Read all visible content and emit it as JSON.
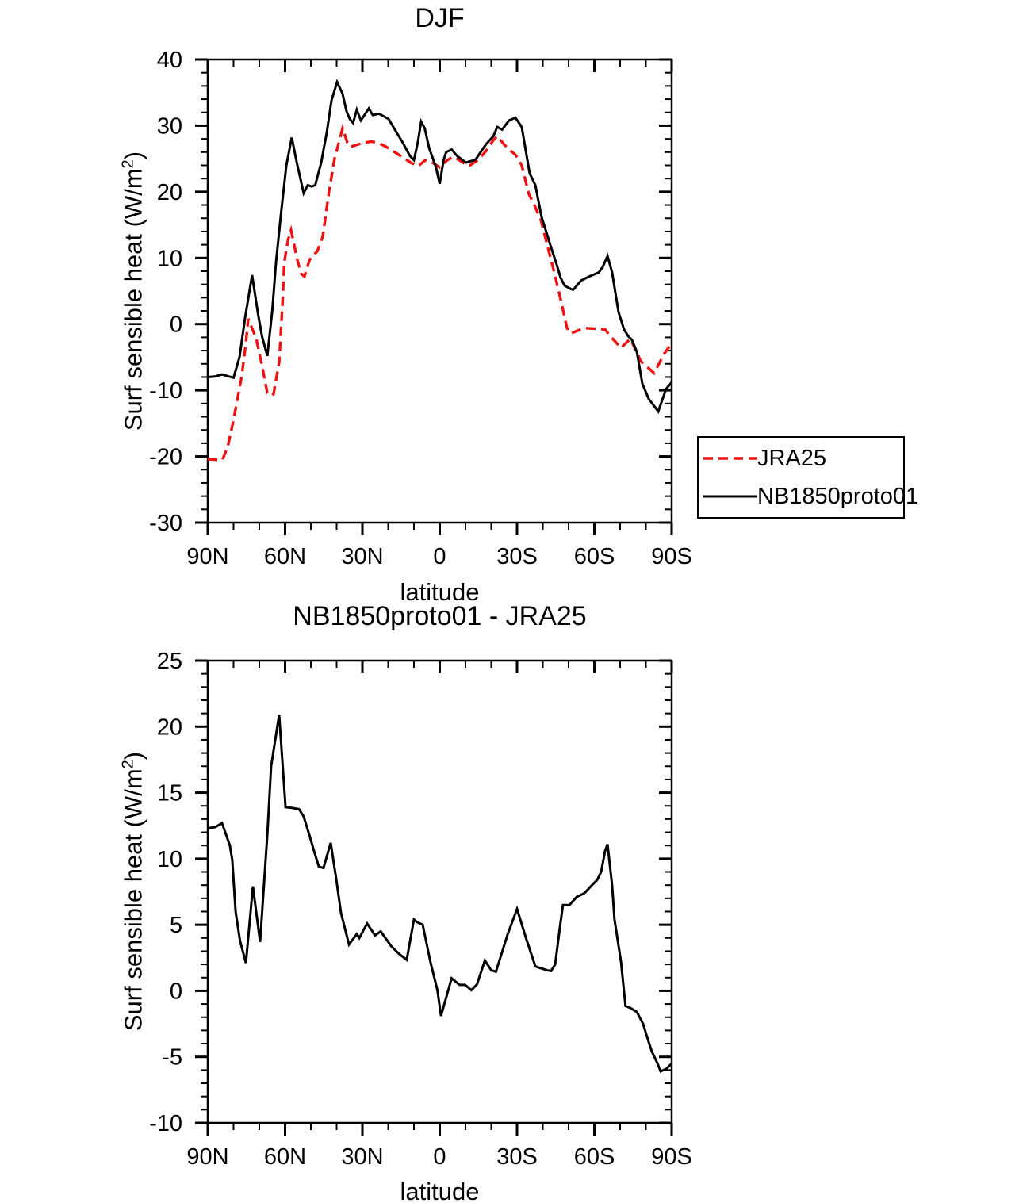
{
  "figure": {
    "background_color": "#ffffff",
    "axis_color": "#000000"
  },
  "chart_data": [
    {
      "type": "line",
      "title": "DJF",
      "xlabel": "latitude",
      "ylabel": "Surf sensible heat (W/m2)",
      "ylabel_prefix": "Surf sensible heat (W/m",
      "ylabel_sup": "2",
      "ylabel_suffix": ")",
      "xlim": [
        90,
        -90
      ],
      "ylim": [
        -30,
        40
      ],
      "x_tick_values": [
        90,
        60,
        30,
        0,
        -30,
        -60,
        -90
      ],
      "x_tick_labels": [
        "90N",
        "60N",
        "30N",
        "0",
        "30S",
        "60S",
        "90S"
      ],
      "x_minor_step": 10,
      "y_tick_values": [
        -30,
        -20,
        -10,
        0,
        10,
        20,
        30,
        40
      ],
      "y_tick_labels": [
        "-30",
        "-20",
        "-10",
        "0",
        "10",
        "20",
        "30",
        "40"
      ],
      "y_minor_step": 2,
      "grid": false,
      "legend": {
        "position": "outside-right",
        "entries": [
          {
            "label": "JRA25",
            "color": "#ee1111",
            "dash": true
          },
          {
            "label": "NB1850proto01",
            "color": "#000000",
            "dash": false
          }
        ]
      },
      "series": [
        {
          "name": "JRA25",
          "color": "#ee1111",
          "style": "dashed",
          "legend_dash": "12 7",
          "points": [
            [
              90,
              -20.4
            ],
            [
              87,
              -20.5
            ],
            [
              84.3,
              -20.5
            ],
            [
              82.3,
              -18.6
            ],
            [
              80.5,
              -15.4
            ],
            [
              78.9,
              -12.2
            ],
            [
              76.8,
              -7.8
            ],
            [
              75.2,
              -2.8
            ],
            [
              74.3,
              0.8
            ],
            [
              71.2,
              -2.2
            ],
            [
              69,
              -6.2
            ],
            [
              66.9,
              -10.4
            ],
            [
              65.4,
              -10.8
            ],
            [
              64.5,
              -10.6
            ],
            [
              62.3,
              -5.8
            ],
            [
              60.9,
              4.0
            ],
            [
              60.3,
              9.4
            ],
            [
              58.8,
              12.8
            ],
            [
              57.7,
              14.2
            ],
            [
              55.2,
              9.6
            ],
            [
              53.7,
              7.6
            ],
            [
              52.5,
              7.2
            ],
            [
              50.6,
              9.6
            ],
            [
              49.7,
              10.2
            ],
            [
              47.5,
              11.0
            ],
            [
              45.4,
              13.2
            ],
            [
              42.9,
              20.2
            ],
            [
              40.8,
              25.0
            ],
            [
              37.7,
              29.6
            ],
            [
              35.8,
              27.4
            ],
            [
              34.6,
              26.8
            ],
            [
              29.7,
              27.4
            ],
            [
              26.6,
              27.6
            ],
            [
              23.8,
              27.4
            ],
            [
              20.8,
              26.8
            ],
            [
              17.4,
              26.0
            ],
            [
              14.3,
              25.2
            ],
            [
              11.2,
              24.4
            ],
            [
              8.5,
              23.9
            ],
            [
              7.4,
              24.2
            ],
            [
              5.5,
              24.8
            ],
            [
              3.5,
              24.6
            ],
            [
              0,
              23.7
            ],
            [
              -3,
              24.8
            ],
            [
              -5.5,
              25.3
            ],
            [
              -9.8,
              24.2
            ],
            [
              -11.7,
              24.0
            ],
            [
              -14.9,
              24.8
            ],
            [
              -18,
              26.2
            ],
            [
              -20.8,
              27.8
            ],
            [
              -22.3,
              28.4
            ],
            [
              -24.9,
              27.2
            ],
            [
              -26.9,
              26.4
            ],
            [
              -29.4,
              25.6
            ],
            [
              -31.8,
              24.0
            ],
            [
              -34.6,
              19.6
            ],
            [
              -36.5,
              18.2
            ],
            [
              -39.2,
              15.8
            ],
            [
              -41.7,
              12.0
            ],
            [
              -44.2,
              8.2
            ],
            [
              -46.9,
              3.8
            ],
            [
              -49.4,
              -0.6
            ],
            [
              -50.9,
              -1.4
            ],
            [
              -53.4,
              -1.0
            ],
            [
              -56.2,
              -0.6
            ],
            [
              -60.2,
              -0.7
            ],
            [
              -64.2,
              -0.8
            ],
            [
              -65.7,
              -1.6
            ],
            [
              -68.5,
              -2.8
            ],
            [
              -70.3,
              -3.6
            ],
            [
              -74,
              -2.2
            ],
            [
              -78,
              -5.6
            ],
            [
              -83.2,
              -7.4
            ],
            [
              -86.9,
              -4.6
            ],
            [
              -90,
              -2.9
            ]
          ]
        },
        {
          "name": "NB1850proto01",
          "color": "#000000",
          "style": "solid",
          "points": [
            [
              90,
              -8.0
            ],
            [
              87,
              -7.9
            ],
            [
              84.5,
              -7.6
            ],
            [
              82,
              -7.9
            ],
            [
              80,
              -8.1
            ],
            [
              77.7,
              -5.0
            ],
            [
              75.5,
              1.0
            ],
            [
              72.8,
              7.4
            ],
            [
              70.5,
              1.5
            ],
            [
              69,
              -1.8
            ],
            [
              66.9,
              -4.8
            ],
            [
              65,
              2.0
            ],
            [
              63.5,
              9.4
            ],
            [
              61.5,
              17.0
            ],
            [
              59.5,
              24.0
            ],
            [
              57.4,
              28.2
            ],
            [
              55.5,
              24.5
            ],
            [
              52.8,
              19.8
            ],
            [
              51.2,
              21.0
            ],
            [
              49.7,
              20.8
            ],
            [
              48.3,
              21.0
            ],
            [
              46,
              24.4
            ],
            [
              43.8,
              29.0
            ],
            [
              42,
              33.8
            ],
            [
              39.8,
              36.6
            ],
            [
              37.7,
              34.8
            ],
            [
              36.2,
              32.2
            ],
            [
              34.9,
              31.0
            ],
            [
              33.6,
              30.4
            ],
            [
              32.2,
              32.4
            ],
            [
              30.6,
              30.8
            ],
            [
              27.5,
              32.6
            ],
            [
              26,
              31.6
            ],
            [
              23.5,
              31.8
            ],
            [
              19.8,
              31.0
            ],
            [
              17.4,
              29.4
            ],
            [
              14.6,
              27.6
            ],
            [
              11.5,
              25.4
            ],
            [
              10,
              24.8
            ],
            [
              8.5,
              27.5
            ],
            [
              7.2,
              30.6
            ],
            [
              5.8,
              29.6
            ],
            [
              4.1,
              26.6
            ],
            [
              1.5,
              23.8
            ],
            [
              0,
              21.2
            ],
            [
              -1.5,
              24.8
            ],
            [
              -2.5,
              26.0
            ],
            [
              -4.6,
              26.4
            ],
            [
              -6.8,
              25.4
            ],
            [
              -10.2,
              24.4
            ],
            [
              -11.7,
              24.6
            ],
            [
              -13.8,
              24.8
            ],
            [
              -15.5,
              25.8
            ],
            [
              -18,
              27.2
            ],
            [
              -20.8,
              28.4
            ],
            [
              -22.3,
              29.8
            ],
            [
              -24.2,
              29.4
            ],
            [
              -26.9,
              30.8
            ],
            [
              -29.4,
              31.2
            ],
            [
              -31.8,
              29.8
            ],
            [
              -34.9,
              22.8
            ],
            [
              -37.1,
              21.0
            ],
            [
              -39.5,
              16.2
            ],
            [
              -41.7,
              13.5
            ],
            [
              -43.2,
              11.6
            ],
            [
              -45.4,
              9.0
            ],
            [
              -46.9,
              7.0
            ],
            [
              -48.5,
              5.8
            ],
            [
              -50.9,
              5.3
            ],
            [
              -51.8,
              5.2
            ],
            [
              -54.9,
              6.6
            ],
            [
              -58,
              7.2
            ],
            [
              -61.7,
              7.8
            ],
            [
              -63.2,
              8.6
            ],
            [
              -65.1,
              10.3
            ],
            [
              -66.9,
              7.8
            ],
            [
              -69.4,
              1.8
            ],
            [
              -71.5,
              -0.8
            ],
            [
              -73.1,
              -1.8
            ],
            [
              -74.6,
              -2.4
            ],
            [
              -76.5,
              -4.2
            ],
            [
              -78.6,
              -9.0
            ],
            [
              -81.1,
              -11.3
            ],
            [
              -84.8,
              -13.2
            ],
            [
              -87.8,
              -9.8
            ],
            [
              -90,
              -8.8
            ]
          ]
        }
      ]
    },
    {
      "type": "line",
      "title": "NB1850proto01 - JRA25",
      "xlabel": "latitude",
      "ylabel": "Surf sensible heat (W/m2)",
      "ylabel_prefix": "Surf sensible heat (W/m",
      "ylabel_sup": "2",
      "ylabel_suffix": ")",
      "xlim": [
        90,
        -90
      ],
      "ylim": [
        -10,
        25
      ],
      "x_tick_values": [
        90,
        60,
        30,
        0,
        -30,
        -60,
        -90
      ],
      "x_tick_labels": [
        "90N",
        "60N",
        "30N",
        "0",
        "30S",
        "60S",
        "90S"
      ],
      "x_minor_step": 10,
      "y_tick_values": [
        -10,
        -5,
        0,
        5,
        10,
        15,
        20,
        25
      ],
      "y_tick_labels": [
        "-10",
        "-5",
        "0",
        "5",
        "10",
        "15",
        "20",
        "25"
      ],
      "y_minor_step": 1,
      "grid": false,
      "series": [
        {
          "name": "NB1850proto01 - JRA25",
          "color": "#000000",
          "style": "solid",
          "points": [
            [
              90,
              12.3
            ],
            [
              87,
              12.4
            ],
            [
              84.5,
              12.7
            ],
            [
              81.4,
              11.0
            ],
            [
              80.5,
              9.9
            ],
            [
              79.2,
              6.0
            ],
            [
              77.5,
              3.8
            ],
            [
              75.2,
              2.1
            ],
            [
              72.5,
              7.9
            ],
            [
              69.7,
              3.7
            ],
            [
              66.9,
              11.8
            ],
            [
              65.4,
              17.0
            ],
            [
              62.3,
              20.9
            ],
            [
              59.8,
              13.9
            ],
            [
              57.5,
              13.85
            ],
            [
              54.6,
              13.75
            ],
            [
              52.8,
              13.2
            ],
            [
              50.6,
              11.8
            ],
            [
              48.5,
              10.4
            ],
            [
              46.9,
              9.4
            ],
            [
              45.1,
              9.3
            ],
            [
              42.3,
              11.2
            ],
            [
              40.2,
              8.5
            ],
            [
              38.3,
              5.9
            ],
            [
              35.2,
              3.5
            ],
            [
              32.2,
              4.3
            ],
            [
              31.2,
              4.0
            ],
            [
              28.2,
              5.1
            ],
            [
              25.1,
              4.2
            ],
            [
              22.9,
              4.5
            ],
            [
              18.9,
              3.4
            ],
            [
              15.8,
              2.8
            ],
            [
              12.8,
              2.35
            ],
            [
              10,
              5.4
            ],
            [
              8.8,
              5.2
            ],
            [
              6.6,
              5.0
            ],
            [
              3.5,
              2.1
            ],
            [
              0.9,
              0.05
            ],
            [
              -0.5,
              -1.9
            ],
            [
              -4.6,
              0.95
            ],
            [
              -7.7,
              0.45
            ],
            [
              -9.8,
              0.45
            ],
            [
              -12.3,
              0.05
            ],
            [
              -14.5,
              0.5
            ],
            [
              -17.5,
              2.3
            ],
            [
              -20,
              1.55
            ],
            [
              -21.8,
              1.45
            ],
            [
              -26.3,
              4.25
            ],
            [
              -30,
              6.2
            ],
            [
              -33.4,
              4.05
            ],
            [
              -37.1,
              1.85
            ],
            [
              -38.6,
              1.75
            ],
            [
              -41.7,
              1.55
            ],
            [
              -43.2,
              1.5
            ],
            [
              -44.8,
              2.0
            ],
            [
              -46.6,
              4.8
            ],
            [
              -47.8,
              6.5
            ],
            [
              -50.3,
              6.5
            ],
            [
              -53.1,
              7.1
            ],
            [
              -56.2,
              7.4
            ],
            [
              -58.6,
              7.9
            ],
            [
              -61.1,
              8.4
            ],
            [
              -62.6,
              9.0
            ],
            [
              -64.2,
              10.6
            ],
            [
              -65.1,
              11.1
            ],
            [
              -66.9,
              8.0
            ],
            [
              -67.8,
              5.4
            ],
            [
              -70.3,
              2.25
            ],
            [
              -72.1,
              -1.15
            ],
            [
              -74,
              -1.3
            ],
            [
              -76.5,
              -1.6
            ],
            [
              -78.9,
              -2.5
            ],
            [
              -80.8,
              -3.7
            ],
            [
              -82.3,
              -4.6
            ],
            [
              -84.5,
              -5.5
            ],
            [
              -85.7,
              -6.1
            ],
            [
              -88,
              -5.9
            ],
            [
              -90,
              -5.5
            ]
          ]
        }
      ]
    }
  ]
}
